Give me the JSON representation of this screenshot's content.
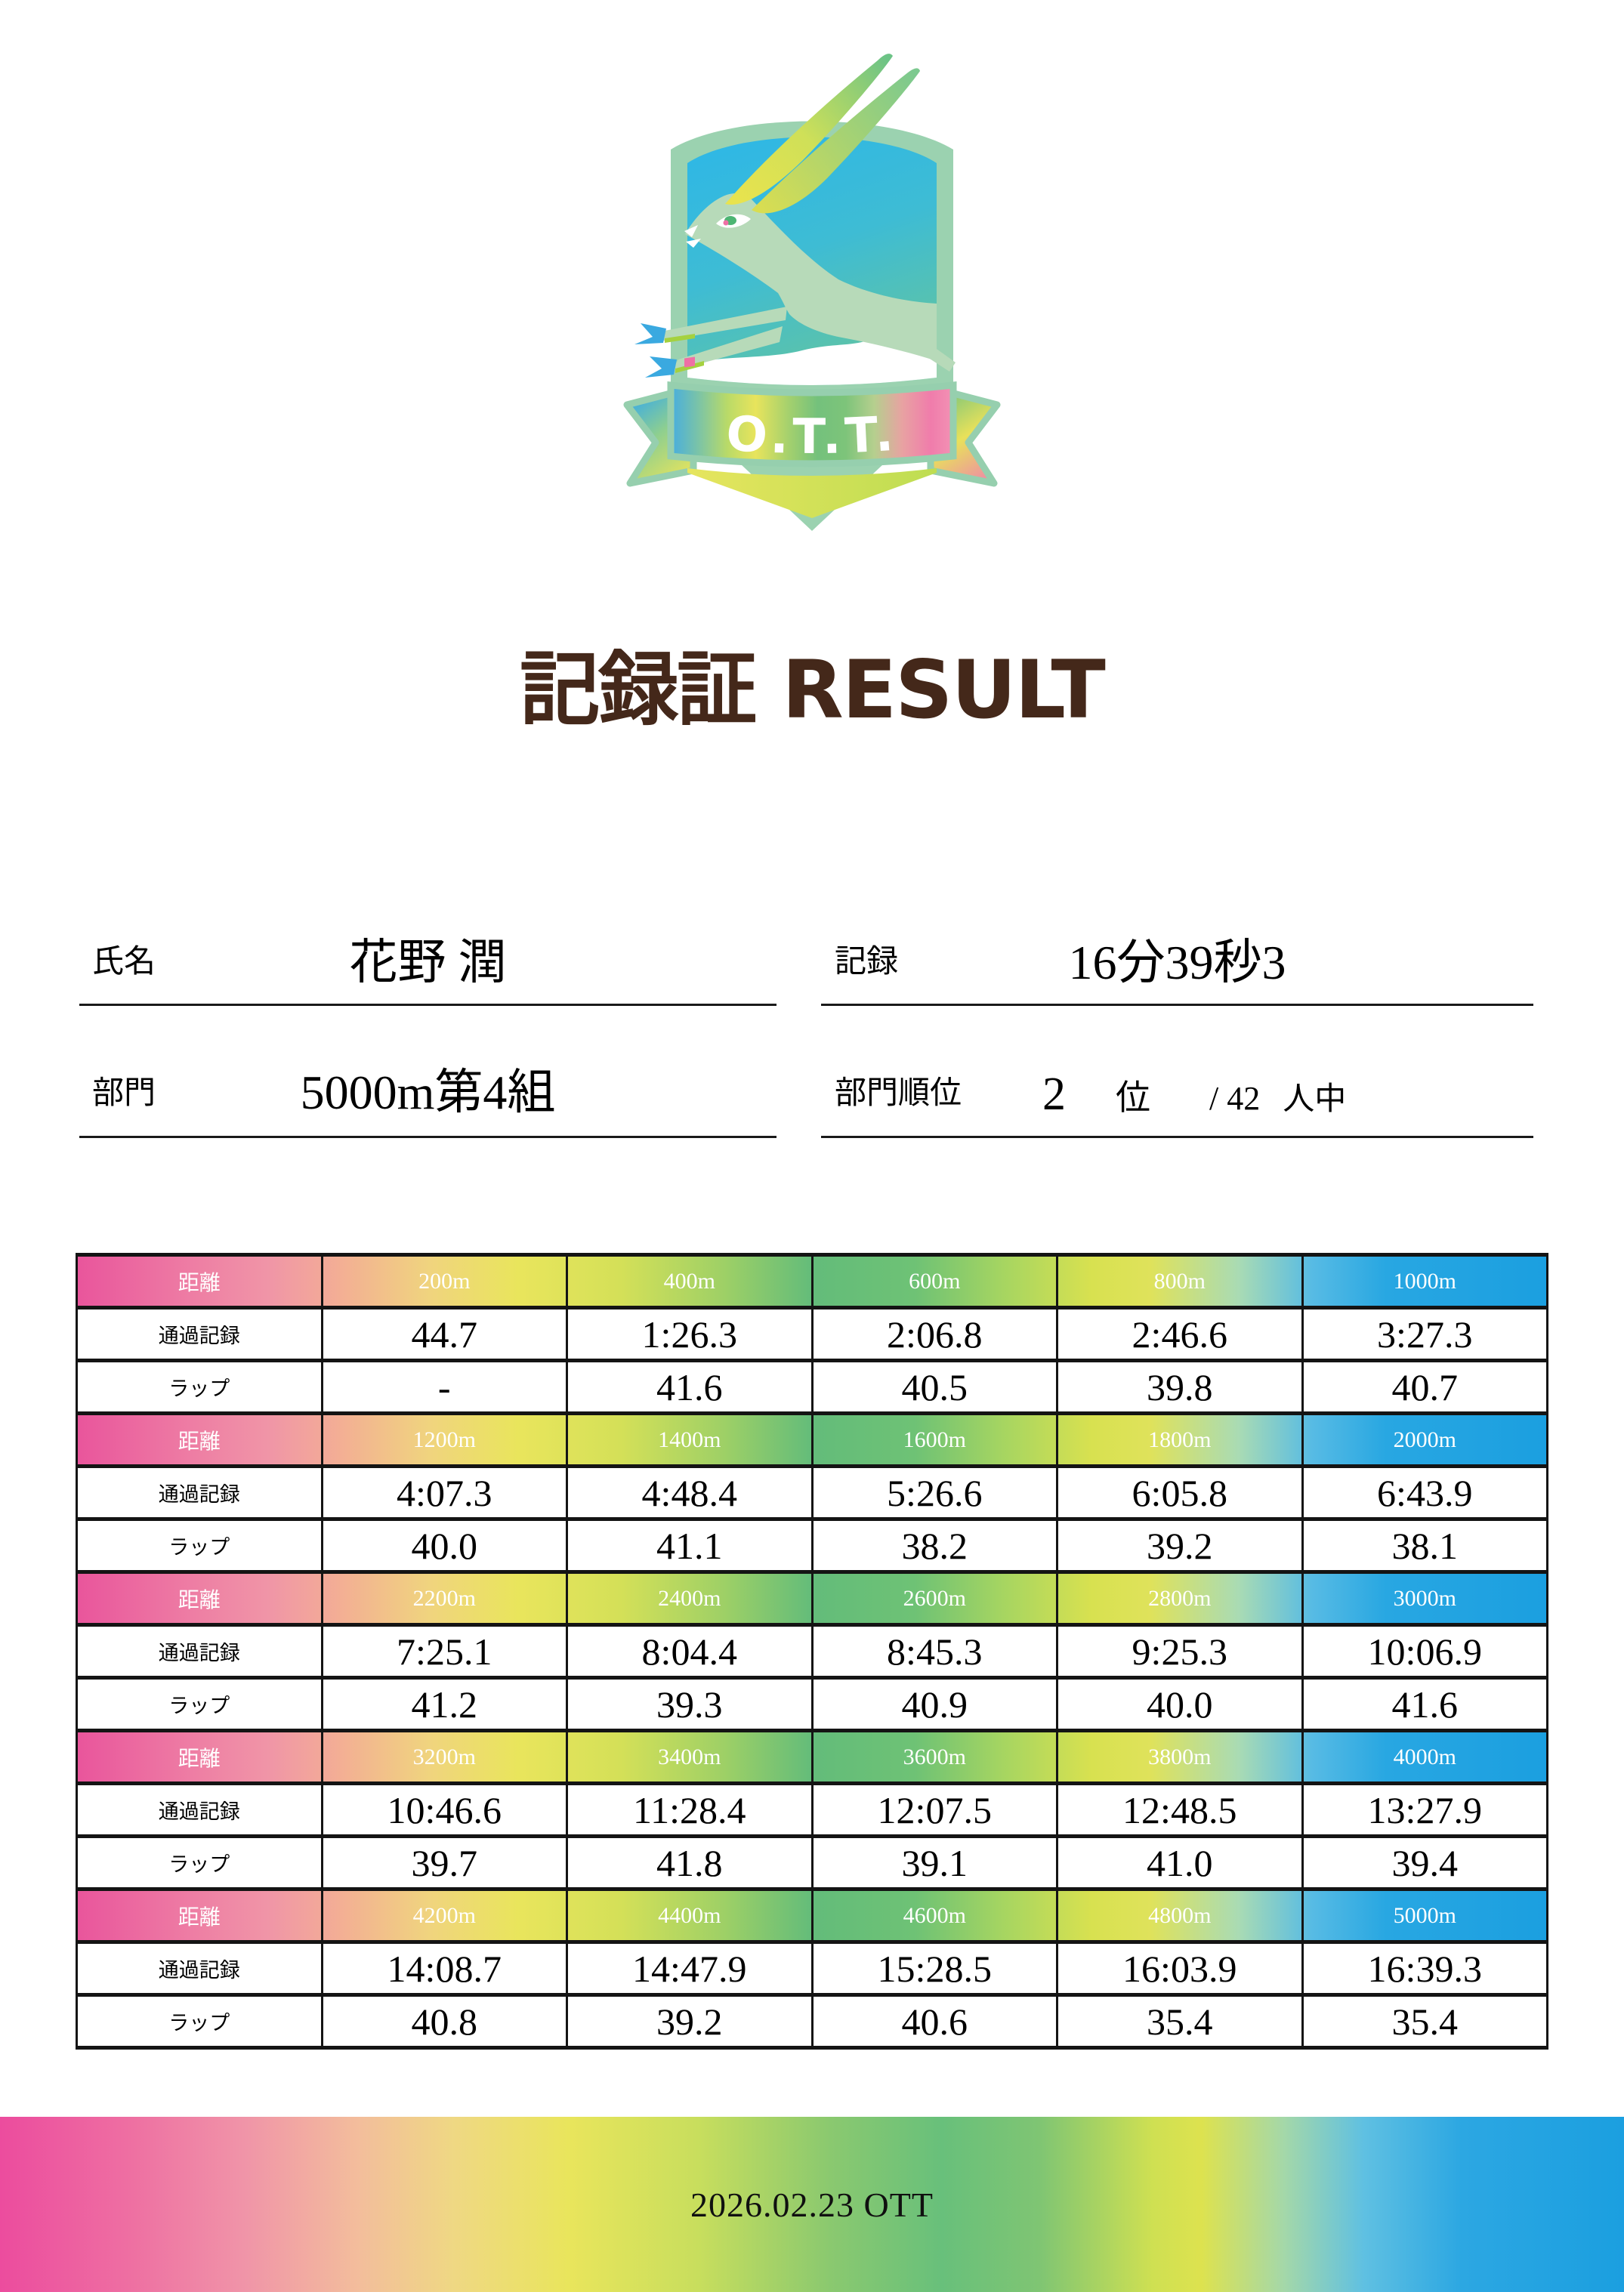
{
  "logo": {
    "banner_text": "O.T.T."
  },
  "title": "記録証 RESULT",
  "fields": {
    "name_label": "氏名",
    "name_value": "花野 潤",
    "record_label": "記録",
    "record_value": "16分39秒3",
    "division_label": "部門",
    "division_value": "5000m第4組",
    "rank_label": "部門順位",
    "rank_value": "2",
    "rank_unit": "位",
    "rank_of_total": "/ 42",
    "rank_total_unit": "人中"
  },
  "table": {
    "row_labels": {
      "distance": "距離",
      "split": "通過記録",
      "lap": "ラップ"
    },
    "groups": [
      {
        "distances": [
          "200m",
          "400m",
          "600m",
          "800m",
          "1000m"
        ],
        "splits": [
          "44.7",
          "1:26.3",
          "2:06.8",
          "2:46.6",
          "3:27.3"
        ],
        "laps": [
          "-",
          "41.6",
          "40.5",
          "39.8",
          "40.7"
        ]
      },
      {
        "distances": [
          "1200m",
          "1400m",
          "1600m",
          "1800m",
          "2000m"
        ],
        "splits": [
          "4:07.3",
          "4:48.4",
          "5:26.6",
          "6:05.8",
          "6:43.9"
        ],
        "laps": [
          "40.0",
          "41.1",
          "38.2",
          "39.2",
          "38.1"
        ]
      },
      {
        "distances": [
          "2200m",
          "2400m",
          "2600m",
          "2800m",
          "3000m"
        ],
        "splits": [
          "7:25.1",
          "8:04.4",
          "8:45.3",
          "9:25.3",
          "10:06.9"
        ],
        "laps": [
          "41.2",
          "39.3",
          "40.9",
          "40.0",
          "41.6"
        ]
      },
      {
        "distances": [
          "3200m",
          "3400m",
          "3600m",
          "3800m",
          "4000m"
        ],
        "splits": [
          "10:46.6",
          "11:28.4",
          "12:07.5",
          "12:48.5",
          "13:27.9"
        ],
        "laps": [
          "39.7",
          "41.8",
          "39.1",
          "41.0",
          "39.4"
        ]
      },
      {
        "distances": [
          "4200m",
          "4400m",
          "4600m",
          "4800m",
          "5000m"
        ],
        "splits": [
          "14:08.7",
          "14:47.9",
          "15:28.5",
          "16:03.9",
          "16:39.3"
        ],
        "laps": [
          "40.8",
          "39.2",
          "40.6",
          "35.4",
          "35.4"
        ]
      }
    ]
  },
  "footer": {
    "text": "2026.02.23 OTT"
  },
  "colors": {
    "title_brown": "#44281a",
    "gradient_pink": "#ec4f9f",
    "gradient_yellow": "#e9e55c",
    "gradient_green": "#5fbb7b",
    "gradient_blue": "#1b9fe0",
    "logo_mint": "#9bd2b0",
    "logo_sky_blue": "#2db7e7",
    "gazelle_green": "#b7dab9",
    "table_border": "#141414"
  }
}
